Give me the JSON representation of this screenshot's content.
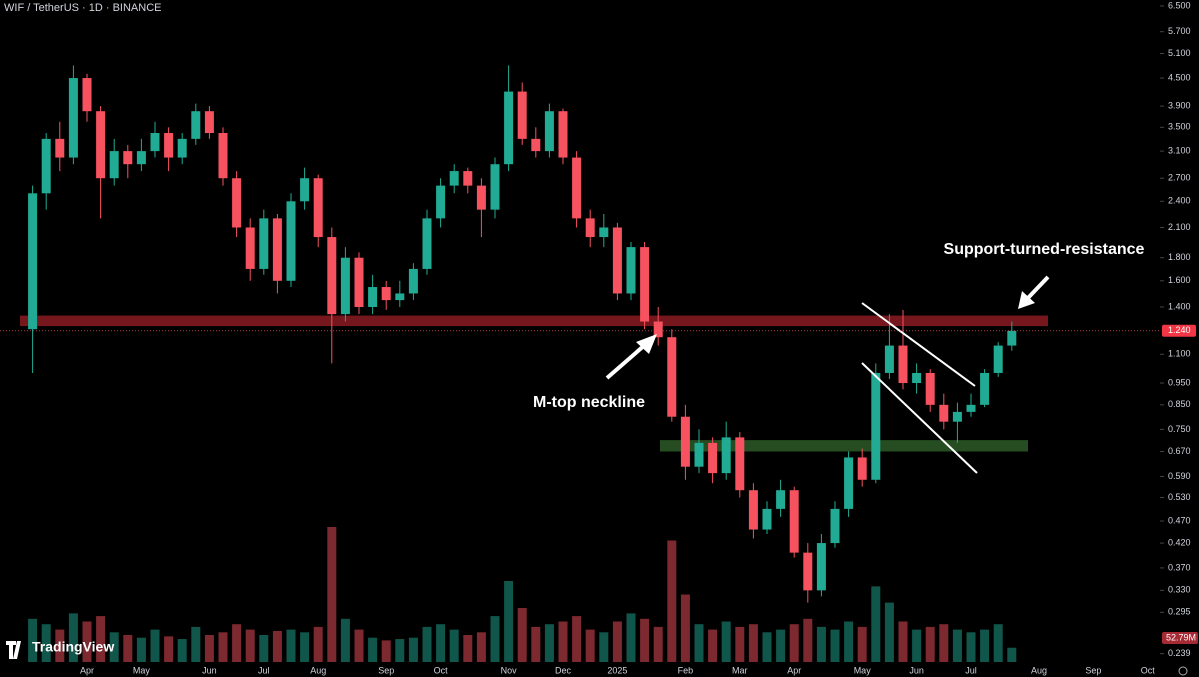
{
  "chart_data": {
    "type": "candlestick",
    "title": "WIF / TetherUS · 1D · BINANCE",
    "watermark": "TradingView",
    "annotations": [
      "Support-turned-resistance",
      "M-top neckline"
    ],
    "log_scale": true,
    "up_color": "#22ab94",
    "down_color": "#f7525f",
    "categories": [
      null,
      null,
      null,
      null,
      "Apr",
      null,
      null,
      null,
      "May",
      null,
      null,
      null,
      null,
      "Jun",
      null,
      null,
      null,
      "Jul",
      null,
      null,
      null,
      "Aug",
      null,
      null,
      null,
      null,
      "Sep",
      null,
      null,
      null,
      "Oct",
      null,
      null,
      null,
      null,
      "Nov",
      null,
      null,
      null,
      "Dec",
      null,
      null,
      null,
      "2025",
      null,
      null,
      null,
      null,
      "Feb",
      null,
      null,
      null,
      "Mar",
      null,
      null,
      null,
      "Apr",
      null,
      null,
      null,
      null,
      "May",
      null,
      null,
      null,
      "Jun",
      null,
      null,
      null,
      "Jul",
      null,
      null,
      null,
      null,
      "Aug",
      null,
      null,
      null,
      "Sep",
      null,
      null,
      null,
      "Oct",
      null
    ],
    "open": [
      1.25,
      2.5,
      3.3,
      3.0,
      4.5,
      3.8,
      2.7,
      3.1,
      2.9,
      3.1,
      3.4,
      3.0,
      3.3,
      3.8,
      3.4,
      2.7,
      2.1,
      1.7,
      2.2,
      1.6,
      2.4,
      2.7,
      2.0,
      1.35,
      1.8,
      1.4,
      1.55,
      1.45,
      1.5,
      1.7,
      2.2,
      2.6,
      2.8,
      2.6,
      2.3,
      2.9,
      4.2,
      3.3,
      3.1,
      3.8,
      3.0,
      2.2,
      2.0,
      2.1,
      1.5,
      1.9,
      1.3,
      1.2,
      0.8,
      0.62,
      0.7,
      0.6,
      0.72,
      0.55,
      0.45,
      0.5,
      0.55,
      0.4,
      0.33,
      0.42,
      0.5,
      0.65,
      0.58,
      1.0,
      1.15,
      0.95,
      1.0,
      0.85,
      0.78,
      0.82,
      0.85,
      1.0,
      1.15,
      null,
      null,
      null,
      null,
      null,
      null,
      null,
      null,
      null,
      null,
      null
    ],
    "high": [
      2.6,
      3.4,
      3.6,
      4.8,
      4.6,
      3.9,
      3.3,
      3.2,
      3.3,
      3.6,
      3.5,
      3.4,
      3.95,
      3.9,
      3.5,
      2.8,
      2.2,
      2.3,
      2.25,
      2.5,
      2.85,
      2.75,
      2.1,
      1.9,
      1.85,
      1.65,
      1.6,
      1.6,
      1.75,
      2.3,
      2.7,
      2.9,
      2.85,
      2.7,
      3.0,
      4.8,
      4.4,
      3.5,
      3.95,
      3.85,
      3.1,
      2.3,
      2.25,
      2.15,
      1.95,
      1.95,
      1.4,
      1.25,
      0.85,
      0.75,
      0.72,
      0.78,
      0.74,
      0.57,
      0.52,
      0.58,
      0.56,
      0.42,
      0.44,
      0.52,
      0.67,
      0.68,
      1.05,
      1.35,
      1.38,
      1.05,
      1.02,
      0.9,
      0.86,
      0.9,
      1.02,
      1.17,
      1.3,
      null,
      null,
      null,
      null,
      null,
      null,
      null,
      null,
      null,
      null,
      null
    ],
    "low": [
      1.0,
      2.3,
      2.8,
      2.9,
      3.6,
      2.2,
      2.6,
      2.7,
      2.8,
      3.0,
      2.8,
      2.9,
      3.2,
      3.3,
      2.6,
      2.0,
      1.6,
      1.65,
      1.5,
      1.55,
      2.3,
      1.9,
      1.05,
      1.3,
      1.35,
      1.35,
      1.38,
      1.4,
      1.45,
      1.65,
      2.1,
      2.5,
      2.5,
      2.0,
      2.2,
      2.8,
      3.2,
      3.0,
      3.0,
      2.9,
      2.1,
      1.9,
      1.9,
      1.45,
      1.45,
      1.25,
      1.15,
      0.78,
      0.58,
      0.6,
      0.57,
      0.58,
      0.53,
      0.43,
      0.44,
      0.48,
      0.39,
      0.31,
      0.32,
      0.41,
      0.48,
      0.56,
      0.57,
      0.97,
      0.92,
      0.9,
      0.82,
      0.75,
      0.7,
      0.8,
      0.84,
      0.98,
      1.12,
      null,
      null,
      null,
      null,
      null,
      null,
      null,
      null,
      null,
      null,
      null
    ],
    "close": [
      2.5,
      3.3,
      3.0,
      4.5,
      3.8,
      2.7,
      3.1,
      2.9,
      3.1,
      3.4,
      3.0,
      3.3,
      3.8,
      3.4,
      2.7,
      2.1,
      1.7,
      2.2,
      1.6,
      2.4,
      2.7,
      2.0,
      1.35,
      1.8,
      1.4,
      1.55,
      1.45,
      1.5,
      1.7,
      2.2,
      2.6,
      2.8,
      2.6,
      2.3,
      2.9,
      4.2,
      3.3,
      3.1,
      3.8,
      3.0,
      2.2,
      2.0,
      2.1,
      1.5,
      1.9,
      1.3,
      1.2,
      0.8,
      0.62,
      0.7,
      0.6,
      0.72,
      0.55,
      0.45,
      0.5,
      0.55,
      0.4,
      0.33,
      0.42,
      0.5,
      0.65,
      0.58,
      1.0,
      1.15,
      0.95,
      1.0,
      0.85,
      0.78,
      0.82,
      0.85,
      1.0,
      1.15,
      1.24,
      null,
      null,
      null,
      null,
      null,
      null,
      null,
      null,
      null,
      null,
      null
    ],
    "volume": [
      160,
      140,
      120,
      180,
      150,
      170,
      110,
      100,
      90,
      120,
      95,
      85,
      130,
      100,
      110,
      140,
      120,
      100,
      115,
      120,
      110,
      130,
      500,
      160,
      120,
      90,
      80,
      85,
      90,
      130,
      140,
      120,
      100,
      110,
      170,
      300,
      200,
      130,
      140,
      150,
      170,
      120,
      110,
      150,
      180,
      160,
      130,
      450,
      250,
      140,
      120,
      150,
      130,
      140,
      110,
      120,
      140,
      160,
      130,
      120,
      150,
      130,
      280,
      220,
      150,
      120,
      130,
      140,
      120,
      110,
      120,
      140,
      52.79,
      null,
      null,
      null,
      null,
      null,
      null,
      null,
      null,
      null,
      null,
      null
    ],
    "last_volume_label": "52.79M",
    "last_price": {
      "value": 1.24,
      "label": "1.240"
    },
    "zones": [
      {
        "low": 1.27,
        "high": 1.34,
        "color": "#8b1a22"
      },
      {
        "low": 0.67,
        "high": 0.71,
        "color": "#2d5a27"
      }
    ],
    "ylim": [
      0.229,
      6.7
    ],
    "yticks": [
      {
        "value": 6.5,
        "label": "6.500"
      },
      {
        "value": 5.7,
        "label": "5.700"
      },
      {
        "value": 5.1,
        "label": "5.100"
      },
      {
        "value": 4.5,
        "label": "4.500"
      },
      {
        "value": 3.9,
        "label": "3.900"
      },
      {
        "value": 3.5,
        "label": "3.500"
      },
      {
        "value": 3.1,
        "label": "3.100"
      },
      {
        "value": 2.7,
        "label": "2.700"
      },
      {
        "value": 2.4,
        "label": "2.400"
      },
      {
        "value": 2.1,
        "label": "2.100"
      },
      {
        "value": 1.8,
        "label": "1.800"
      },
      {
        "value": 1.6,
        "label": "1.600"
      },
      {
        "value": 1.4,
        "label": "1.400"
      },
      {
        "value": 1.1,
        "label": "1.100"
      },
      {
        "value": 0.95,
        "label": "0.950"
      },
      {
        "value": 0.85,
        "label": "0.850"
      },
      {
        "value": 0.75,
        "label": "0.750"
      },
      {
        "value": 0.67,
        "label": "0.670"
      },
      {
        "value": 0.59,
        "label": "0.590"
      },
      {
        "value": 0.53,
        "label": "0.530"
      },
      {
        "value": 0.47,
        "label": "0.470"
      },
      {
        "value": 0.42,
        "label": "0.420"
      },
      {
        "value": 0.37,
        "label": "0.370"
      },
      {
        "value": 0.33,
        "label": "0.330"
      },
      {
        "value": 0.295,
        "label": "0.295"
      },
      {
        "value": 0.239,
        "label": "0.239"
      }
    ],
    "grid": false
  }
}
